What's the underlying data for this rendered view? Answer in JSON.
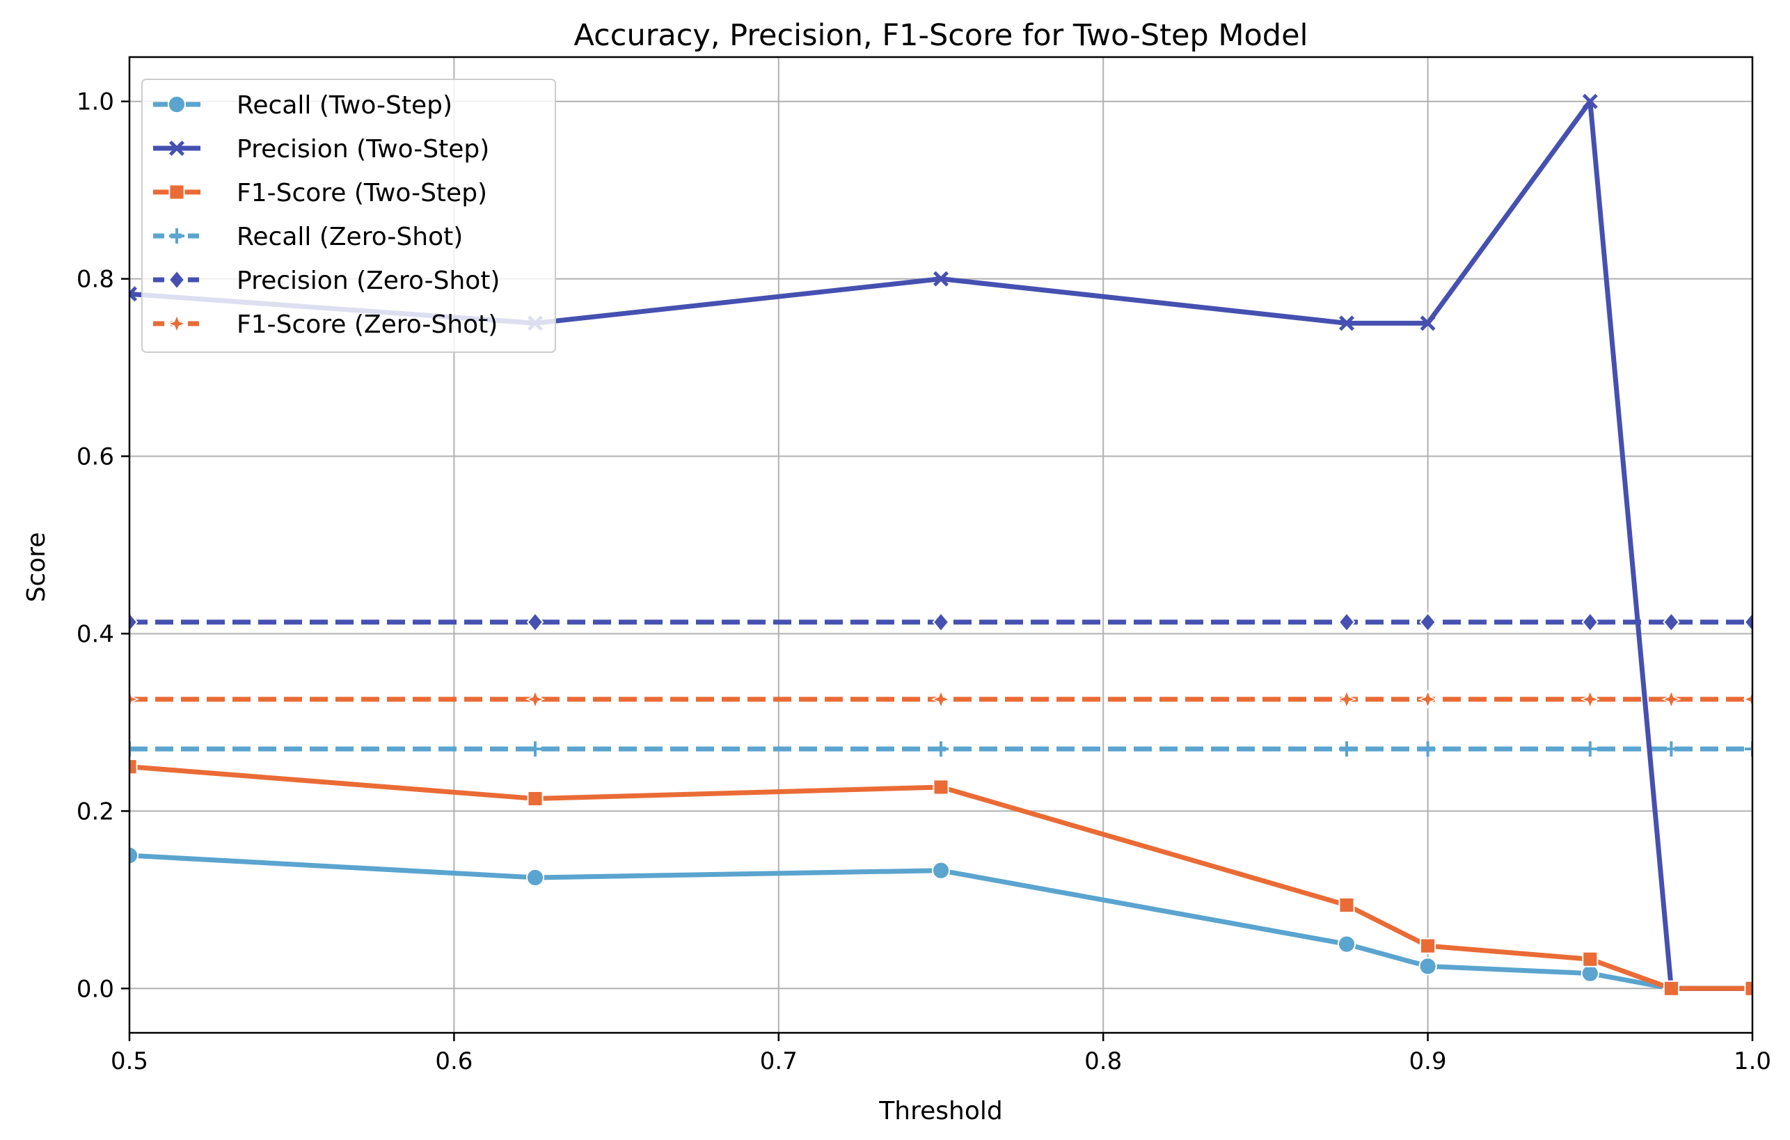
{
  "chart_data": {
    "type": "line",
    "title": "Accuracy, Precision, F1-Score for Two-Step Model",
    "xlabel": "Threshold",
    "ylabel": "Score",
    "xlim": [
      0.5,
      1.0
    ],
    "ylim": [
      -0.05,
      1.05
    ],
    "xticks": [
      0.5,
      0.6,
      0.7,
      0.8,
      0.9,
      1.0
    ],
    "xtick_labels": [
      "0.5",
      "0.6",
      "0.7",
      "0.8",
      "0.9",
      "1.0"
    ],
    "yticks": [
      0.0,
      0.2,
      0.4,
      0.6,
      0.8,
      1.0
    ],
    "ytick_labels": [
      "0.0",
      "0.2",
      "0.4",
      "0.6",
      "0.8",
      "1.0"
    ],
    "grid": true,
    "legend_position": "top-left",
    "x": [
      0.5,
      0.625,
      0.75,
      0.875,
      0.9,
      0.95,
      0.975,
      1.0
    ],
    "series": [
      {
        "name": "Recall (Two-Step)",
        "color": "#5aa4cf",
        "dash": "solid",
        "marker": "circle",
        "values": [
          0.15,
          0.125,
          0.133,
          0.05,
          0.025,
          0.017,
          0.0,
          0.0
        ]
      },
      {
        "name": "Precision (Two-Step)",
        "color": "#4550b0",
        "dash": "solid",
        "marker": "x",
        "values": [
          0.783,
          0.75,
          0.8,
          0.75,
          0.75,
          1.0,
          0.0,
          0.0
        ]
      },
      {
        "name": "F1-Score (Two-Step)",
        "color": "#ea6b35",
        "dash": "solid",
        "marker": "square",
        "values": [
          0.25,
          0.214,
          0.227,
          0.094,
          0.048,
          0.033,
          0.0,
          0.0
        ]
      },
      {
        "name": "Recall (Zero-Shot)",
        "color": "#5aa4cf",
        "dash": "dashed",
        "marker": "plus",
        "values": [
          0.27,
          0.27,
          0.27,
          0.27,
          0.27,
          0.27,
          0.27,
          0.27
        ]
      },
      {
        "name": "Precision (Zero-Shot)",
        "color": "#4550b0",
        "dash": "dashed",
        "marker": "diamond",
        "values": [
          0.413,
          0.413,
          0.413,
          0.413,
          0.413,
          0.413,
          0.413,
          0.413
        ]
      },
      {
        "name": "F1-Score (Zero-Shot)",
        "color": "#ea6b35",
        "dash": "dashed",
        "marker": "star",
        "values": [
          0.326,
          0.326,
          0.326,
          0.326,
          0.326,
          0.326,
          0.326,
          0.326
        ]
      }
    ]
  }
}
